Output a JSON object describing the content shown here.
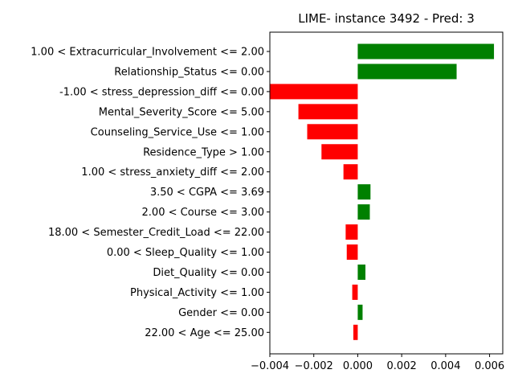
{
  "chart_data": {
    "type": "bar",
    "orientation": "horizontal",
    "title": "LIME- instance 3492 - Pred: 3",
    "xlabel": "",
    "ylabel": "",
    "xlim": [
      -0.004,
      0.0066
    ],
    "xticks": [
      -0.004,
      -0.002,
      0.0,
      0.002,
      0.004,
      0.006
    ],
    "xtick_labels": [
      "−0.004",
      "−0.002",
      "0.000",
      "0.002",
      "0.004",
      "0.006"
    ],
    "grid": false,
    "legend": "none",
    "colors": {
      "positive": "#008000",
      "negative": "#ff0000"
    },
    "categories": [
      "1.00 < Extracurricular_Involvement <= 2.00",
      "Relationship_Status <= 0.00",
      "-1.00 < stress_depression_diff <= 0.00",
      "Mental_Severity_Score <= 5.00",
      "Counseling_Service_Use <= 1.00",
      "Residence_Type > 1.00",
      "1.00 < stress_anxiety_diff <= 2.00",
      "3.50 < CGPA <= 3.69",
      "2.00 < Course <= 3.00",
      "18.00 < Semester_Credit_Load <= 22.00",
      "0.00 < Sleep_Quality <= 1.00",
      "Diet_Quality <= 0.00",
      "Physical_Activity <= 1.00",
      "Gender <= 0.00",
      "22.00 < Age <= 25.00"
    ],
    "values": [
      0.0062,
      0.0045,
      -0.004,
      -0.0027,
      -0.0023,
      -0.00165,
      -0.00065,
      0.00058,
      0.00055,
      -0.00055,
      -0.0005,
      0.00035,
      -0.00025,
      0.00022,
      -0.0002
    ]
  }
}
